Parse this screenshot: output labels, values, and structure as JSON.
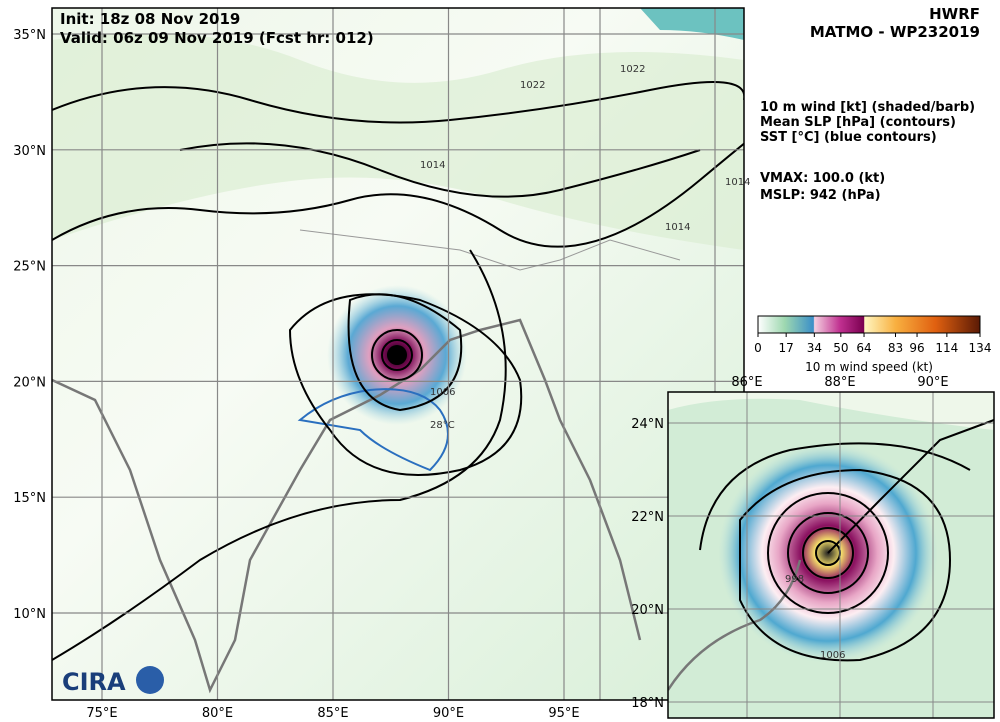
{
  "header": {
    "init": "Init:  18z 08 Nov 2019",
    "valid": "Valid: 06z 09 Nov 2019 (Fcst hr: 012)",
    "model": "HWRF",
    "storm": "MATMO - WP232019"
  },
  "legend": {
    "lines": [
      "10 m wind [kt] (shaded/barb)",
      "Mean SLP [hPa] (contours)",
      "SST [°C] (blue contours)"
    ],
    "vmax": "VMAX: 100.0 (kt)",
    "mslp": "MSLP:  942 (hPa)"
  },
  "colorbar": {
    "ticks": [
      0,
      17,
      34,
      50,
      64,
      83,
      96,
      114,
      134
    ],
    "label": "10 m wind speed (kt)"
  },
  "main_map": {
    "lat_labels": [
      "35°N",
      "30°N",
      "25°N",
      "20°N",
      "15°N",
      "10°N"
    ],
    "lon_labels": [
      "75°E",
      "80°E",
      "85°E",
      "90°E",
      "95°E"
    ],
    "contour_labels": [
      "1022",
      "1022",
      "1014",
      "1014",
      "1014",
      "1006",
      "28°C"
    ]
  },
  "inset_map": {
    "lat_labels": [
      "24°N",
      "22°N",
      "20°N",
      "18°N"
    ],
    "lon_labels": [
      "86°E",
      "88°E",
      "90°E"
    ],
    "contour_labels": [
      "1006",
      "998"
    ]
  },
  "logo": "CIRA"
}
